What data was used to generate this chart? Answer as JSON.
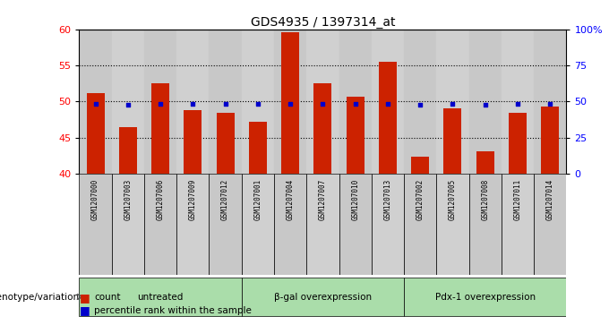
{
  "title": "GDS4935 / 1397314_at",
  "samples": [
    "GSM1207000",
    "GSM1207003",
    "GSM1207006",
    "GSM1207009",
    "GSM1207012",
    "GSM1207001",
    "GSM1207004",
    "GSM1207007",
    "GSM1207010",
    "GSM1207013",
    "GSM1207002",
    "GSM1207005",
    "GSM1207008",
    "GSM1207011",
    "GSM1207014"
  ],
  "count_values": [
    51.2,
    46.5,
    52.5,
    48.8,
    48.5,
    47.2,
    59.6,
    52.5,
    50.7,
    55.5,
    42.4,
    49.1,
    43.1,
    48.5,
    49.3
  ],
  "percentile_values": [
    48.5,
    48.0,
    48.5,
    48.3,
    48.3,
    48.2,
    48.5,
    48.4,
    48.5,
    48.5,
    47.7,
    48.5,
    47.7,
    48.3,
    48.3
  ],
  "ylim_left": [
    40,
    60
  ],
  "ylim_right": [
    0,
    100
  ],
  "yticks_left": [
    40,
    45,
    50,
    55,
    60
  ],
  "yticks_right": [
    0,
    25,
    50,
    75,
    100
  ],
  "ytick_labels_right": [
    "0",
    "25",
    "50",
    "75",
    "100%"
  ],
  "groups": [
    {
      "label": "untreated",
      "start": 0,
      "end": 5
    },
    {
      "label": "β-gal overexpression",
      "start": 5,
      "end": 10
    },
    {
      "label": "Pdx-1 overexpression",
      "start": 10,
      "end": 15
    }
  ],
  "bar_color": "#cc2200",
  "percentile_color": "#0000cc",
  "col_colors": [
    "#c8c8c8",
    "#d0d0d0"
  ],
  "group_bg_color": "#aaddaa",
  "plot_bg_color": "#ffffff",
  "bar_width": 0.55,
  "group_label_y": "genotype/variation"
}
